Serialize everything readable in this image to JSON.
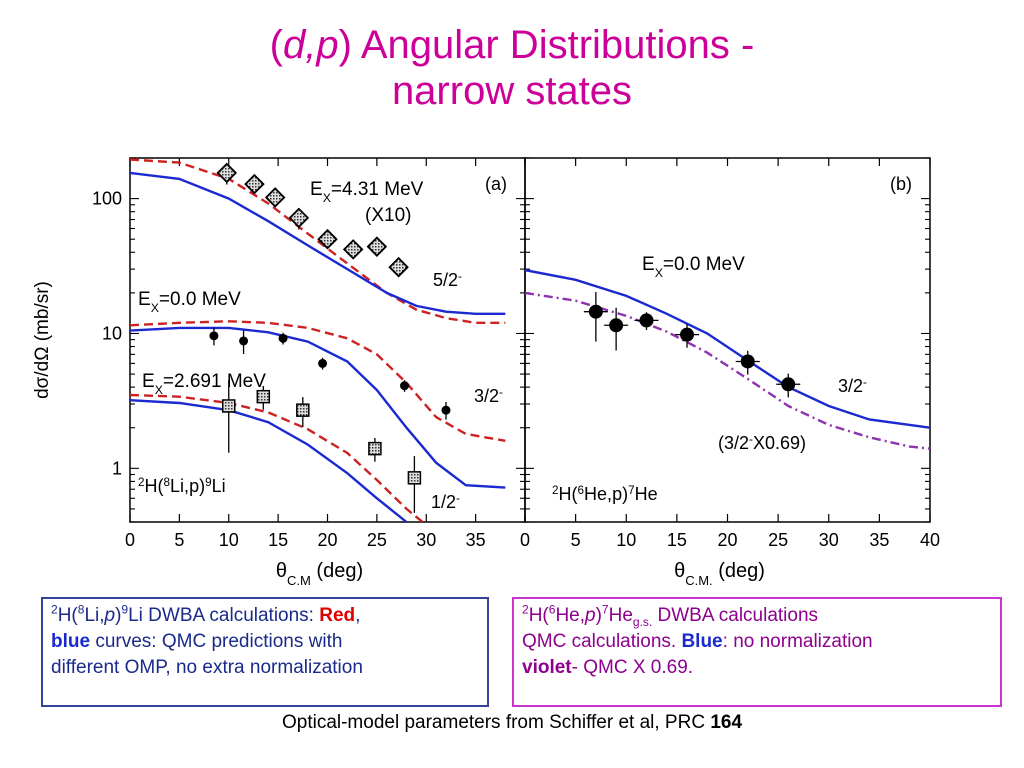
{
  "title": {
    "part1": "(",
    "part2": "d,p",
    "part3": ") Angular Distributions -",
    "line2": "narrow states"
  },
  "colors": {
    "title": "#cc0099",
    "red_curve": "#cc2222",
    "blue_curve": "#1a2ad0",
    "violet_curve": "#8e33b0"
  },
  "chart_data": [
    {
      "type": "scatter",
      "panel_label": "(a)",
      "ylabel": "dσ/dΩ (mb/sr)",
      "xlabel": "θC.M (deg)",
      "xlim": [
        0,
        40
      ],
      "ylim": [
        0.4,
        200
      ],
      "yscale": "log",
      "xticks": [
        "0",
        "5",
        "10",
        "15",
        "20",
        "25",
        "30",
        "35"
      ],
      "yticks": [
        "1",
        "10",
        "100"
      ],
      "annotations": {
        "ex1": "EX=4.31 MeV",
        "ex1_scale": "(X10)",
        "ex2": "EX=0.0 MeV",
        "ex3": "EX=2.691 MeV",
        "j1": "5/2-",
        "j2": "3/2-",
        "j3": "1/2-",
        "reaction": "2H(8Li,p)9Li"
      },
      "series": [
        {
          "marker": "diamond",
          "x": [
            9.8,
            12.6,
            14.7,
            17.1,
            20.0,
            22.6,
            25.0,
            27.2
          ],
          "y": [
            155,
            128,
            102,
            72,
            50,
            42,
            44,
            31
          ],
          "yerr_frac": [
            0.18,
            0.12,
            0.15,
            0.18,
            0.12,
            0.12,
            0.12,
            0.15
          ]
        },
        {
          "marker": "circle",
          "x": [
            8.5,
            11.5,
            15.5,
            19.5,
            27.8,
            32.0
          ],
          "y": [
            9.6,
            8.8,
            9.2,
            6.0,
            4.1,
            2.7
          ],
          "yerr_frac": [
            0.15,
            0.2,
            0.1,
            0.1,
            0.1,
            0.15
          ]
        },
        {
          "marker": "square",
          "x": [
            10.0,
            13.5,
            17.5,
            24.8,
            28.8
          ],
          "y": [
            2.9,
            3.4,
            2.7,
            1.4,
            0.85
          ],
          "yerr_frac": [
            0.55,
            0.2,
            0.25,
            0.2,
            0.45
          ]
        },
        {
          "style": "dashed",
          "color": "red",
          "x": [
            0,
            5,
            10,
            14,
            18,
            22,
            26,
            29,
            32,
            35,
            38
          ],
          "y": [
            195,
            185,
            140,
            92,
            55,
            33,
            20,
            15,
            13,
            12,
            12
          ]
        },
        {
          "style": "solid",
          "color": "blue",
          "x": [
            0,
            5,
            10,
            14,
            18,
            22,
            26,
            29,
            32,
            35,
            38
          ],
          "y": [
            155,
            140,
            100,
            68,
            45,
            30,
            20,
            16,
            14.5,
            14,
            14
          ]
        },
        {
          "style": "dashed",
          "color": "red",
          "x": [
            0,
            5,
            10,
            14,
            18,
            22,
            25,
            28,
            31,
            34,
            38
          ],
          "y": [
            11.5,
            12,
            12.3,
            12,
            11,
            9.2,
            7,
            4.3,
            2.4,
            1.8,
            1.6
          ]
        },
        {
          "style": "solid",
          "color": "blue",
          "x": [
            0,
            5,
            10,
            14,
            18,
            22,
            25,
            28,
            31,
            34,
            38
          ],
          "y": [
            10.5,
            11,
            11,
            10.2,
            8.7,
            6.2,
            3.8,
            2,
            1.1,
            0.75,
            0.72
          ]
        },
        {
          "style": "dashed",
          "color": "red",
          "x": [
            0,
            5,
            10,
            14,
            18,
            22,
            25,
            28,
            30
          ],
          "y": [
            3.5,
            3.4,
            3.05,
            2.6,
            1.95,
            1.3,
            0.82,
            0.5,
            0.38
          ]
        },
        {
          "style": "solid",
          "color": "blue",
          "x": [
            0,
            5,
            10,
            14,
            18,
            22,
            25,
            28
          ],
          "y": [
            3.2,
            3.05,
            2.7,
            2.2,
            1.5,
            0.92,
            0.6,
            0.4
          ]
        }
      ]
    },
    {
      "type": "scatter",
      "panel_label": "(b)",
      "xlabel": "θC.M. (deg)",
      "xlim": [
        0,
        40
      ],
      "ylim": [
        0.4,
        200
      ],
      "yscale": "log",
      "xticks": [
        "0",
        "5",
        "10",
        "15",
        "20",
        "25",
        "30",
        "35",
        "40"
      ],
      "annotations": {
        "ex": "EX=0.0 MeV",
        "j": "3/2-",
        "scaled": "(3/2-X0.69)",
        "reaction": "2H(6He,p)7He"
      },
      "series": [
        {
          "marker": "circle",
          "x": [
            7.0,
            9.0,
            12.0,
            16.0,
            22.0,
            26.0
          ],
          "y": [
            14.5,
            11.5,
            12.5,
            9.8,
            6.2,
            4.2
          ],
          "yerr_frac": [
            0.4,
            0.35,
            0.15,
            0.2,
            0.2,
            0.2
          ]
        },
        {
          "style": "solid",
          "color": "blue",
          "x": [
            0,
            5,
            10,
            14,
            18,
            22,
            26,
            30,
            34,
            38,
            40
          ],
          "y": [
            29.5,
            25,
            19,
            14,
            10,
            6.3,
            4,
            2.9,
            2.3,
            2.1,
            2.0
          ]
        },
        {
          "style": "dashdot",
          "color": "violet",
          "x": [
            0,
            5,
            10,
            14,
            18,
            22,
            26,
            30,
            34,
            38,
            40
          ],
          "y": [
            20,
            17.5,
            13.5,
            10.3,
            7.2,
            4.6,
            2.9,
            2.1,
            1.7,
            1.45,
            1.4
          ]
        }
      ]
    }
  ],
  "box_left": {
    "sup1": "2",
    "t1": "H(",
    "sup2": "8",
    "t2": "Li,",
    "t3": "p",
    "t4": ")",
    "sup3": "9",
    "t5": "Li DWBA calculations: ",
    "red": "Red",
    "comma": ",",
    "blue": "blue",
    "t6": " curves: QMC predictions with",
    "line3": "different OMP, no extra normalization"
  },
  "box_right": {
    "sup1": "2",
    "t1": "H(",
    "sup2": "6",
    "t2": "He,",
    "t3": "p",
    "t4": ")",
    "sup3": "7",
    "t5": "He",
    "sub1": "g.s.",
    "t6": " DWBA calculations",
    "line2a": "QMC calculations. ",
    "blue": "Blue",
    "line2b": ": no normalization",
    "violet": "violet",
    "line3": "- QMC X 0.69."
  },
  "caption": {
    "text": "Optical-model parameters from Schiffer et al, PRC ",
    "bold": "164"
  }
}
